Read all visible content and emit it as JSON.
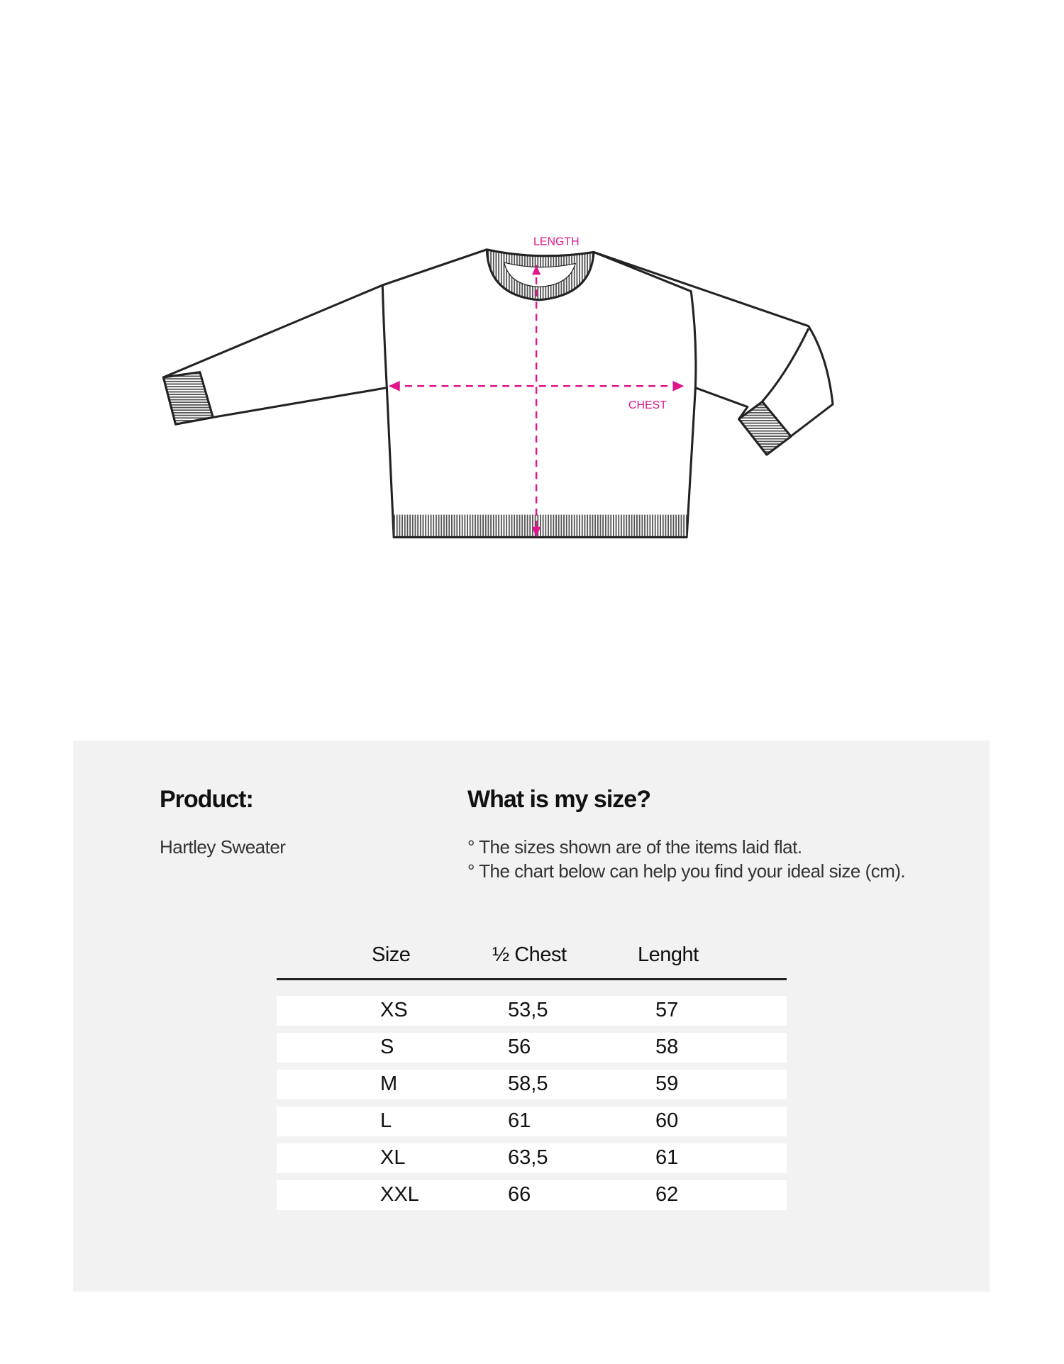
{
  "diagram": {
    "length_label": "LENGTH",
    "chest_label": "CHEST",
    "accent_color": "#e0158c"
  },
  "product": {
    "heading": "Product:",
    "name": "Hartley Sweater"
  },
  "size_info": {
    "heading": "What is my size?",
    "notes": [
      "° The sizes shown are of the items laid flat.",
      "° The chart below can help you find your ideal size (cm)."
    ]
  },
  "table": {
    "headers": [
      "Size",
      "½ Chest",
      "Lenght"
    ],
    "rows": [
      [
        "XS",
        "53,5",
        "57"
      ],
      [
        "S",
        "56",
        "58"
      ],
      [
        "M",
        "58,5",
        "59"
      ],
      [
        "L",
        "61",
        "60"
      ],
      [
        "XL",
        "63,5",
        "61"
      ],
      [
        "XXL",
        "66",
        "62"
      ]
    ]
  }
}
